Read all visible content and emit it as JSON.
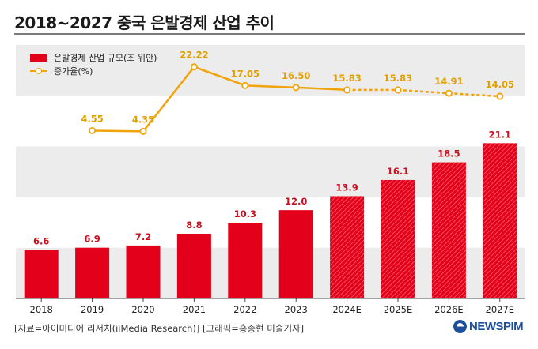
{
  "title": "2018~2027 중국 은발경제 산업 추이",
  "legend": {
    "bar_label": "은발경제 산업 규모(조 위안)",
    "line_label": "증가율(%)"
  },
  "source": "[자료=아이미디어 리서치(iiMedia Research)] [그래픽=홍종현 미술기자]",
  "logo": "NEWSPIM",
  "colors": {
    "bar": "#e2001a",
    "line": "#f0a30a",
    "bar_label": "#c8101e",
    "line_label": "#e0a000",
    "band": "#ececec"
  },
  "chart_data": {
    "type": "bar",
    "categories": [
      "2018",
      "2019",
      "2020",
      "2021",
      "2022",
      "2023",
      "2024E",
      "2025E",
      "2026E",
      "2027E"
    ],
    "series": [
      {
        "name": "은발경제 산업 규모(조 위안)",
        "type": "bar",
        "values": [
          6.6,
          6.9,
          7.2,
          8.8,
          10.3,
          12.0,
          13.9,
          16.1,
          18.5,
          21.1
        ],
        "labels": [
          "6.6",
          "6.9",
          "7.2",
          "8.8",
          "10.3",
          "12.0",
          "13.9",
          "16.1",
          "18.5",
          "21.1"
        ],
        "estimated_from_index": 6
      },
      {
        "name": "증가율(%)",
        "type": "line",
        "values": [
          null,
          4.55,
          4.35,
          22.22,
          17.05,
          16.5,
          15.83,
          15.83,
          14.91,
          14.05
        ],
        "labels": [
          "",
          "4.55",
          "4.35",
          "22.22",
          "17.05",
          "16.50",
          "15.83",
          "15.83",
          "14.91",
          "14.05"
        ],
        "dashed_from_index": 6
      }
    ],
    "bar_ylim": [
      0,
      25
    ],
    "line_ylim": [
      -10,
      25
    ],
    "grid": "alternating horizontal bands",
    "legend_position": "top-left"
  }
}
